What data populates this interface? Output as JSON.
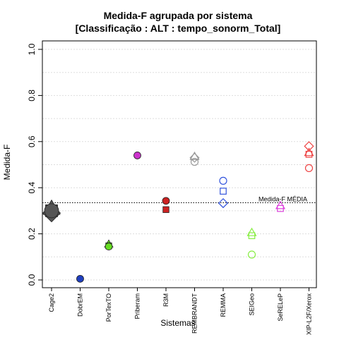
{
  "chart_data": {
    "type": "scatter",
    "title": "Medida-F agrupada por sistema",
    "subtitle": "[Classificação : ALT : tempo_sonorm_Total]",
    "xlabel": "Sistemas",
    "ylabel": "Medida-F",
    "ylim": [
      0,
      1
    ],
    "yticks": [
      "0.0",
      "0.2",
      "0.4",
      "0.6",
      "0.8",
      "1.0"
    ],
    "grid": true,
    "categories": [
      "Cage2",
      "DobrEM",
      "PorTexTO",
      "Priberam",
      "R3M",
      "REMBRANDT",
      "REMMA",
      "SEIGeo",
      "SeRELeP",
      "XIP-L2F/Xerox"
    ],
    "reference_line": {
      "value": 0.335,
      "label": "Medida-F MÉDIA"
    },
    "points": [
      {
        "category": "Cage2",
        "y": 0.31,
        "shape": "triangle",
        "color": "#555555",
        "filled": true,
        "size": "large"
      },
      {
        "category": "Cage2",
        "y": 0.3,
        "shape": "square",
        "color": "#555555",
        "filled": true,
        "size": "large"
      },
      {
        "category": "Cage2",
        "y": 0.29,
        "shape": "diamond",
        "color": "#555555",
        "filled": true,
        "size": "large"
      },
      {
        "category": "Cage2",
        "y": 0.3,
        "shape": "circle",
        "color": "#555555",
        "filled": true,
        "size": "large"
      },
      {
        "category": "DobrEM",
        "y": 0.005,
        "shape": "circle",
        "color": "#1f3fbf",
        "filled": true,
        "size": "normal"
      },
      {
        "category": "PorTexTO",
        "y": 0.155,
        "shape": "triangle",
        "color": "#66dd22",
        "filled": true,
        "size": "normal"
      },
      {
        "category": "PorTexTO",
        "y": 0.148,
        "shape": "square",
        "color": "#66dd22",
        "filled": true,
        "size": "normal"
      },
      {
        "category": "PorTexTO",
        "y": 0.145,
        "shape": "circle",
        "color": "#66dd22",
        "filled": true,
        "size": "normal"
      },
      {
        "category": "Priberam",
        "y": 0.54,
        "shape": "circle",
        "color": "#cc33cc",
        "filled": true,
        "size": "normal"
      },
      {
        "category": "R3M",
        "y": 0.343,
        "shape": "circle",
        "color": "#cc2222",
        "filled": true,
        "size": "normal"
      },
      {
        "category": "R3M",
        "y": 0.305,
        "shape": "square",
        "color": "#cc2222",
        "filled": true,
        "size": "normal"
      },
      {
        "category": "REMBRANDT",
        "y": 0.535,
        "shape": "triangle",
        "color": "#999999",
        "filled": false,
        "size": "normal"
      },
      {
        "category": "REMBRANDT",
        "y": 0.53,
        "shape": "diamond",
        "color": "#999999",
        "filled": false,
        "size": "normal"
      },
      {
        "category": "REMBRANDT",
        "y": 0.512,
        "shape": "circle",
        "color": "#999999",
        "filled": false,
        "size": "normal"
      },
      {
        "category": "REMMA",
        "y": 0.43,
        "shape": "circle",
        "color": "#3355dd",
        "filled": false,
        "size": "normal"
      },
      {
        "category": "REMMA",
        "y": 0.385,
        "shape": "square",
        "color": "#3355dd",
        "filled": false,
        "size": "normal"
      },
      {
        "category": "REMMA",
        "y": 0.333,
        "shape": "diamond",
        "color": "#3355dd",
        "filled": false,
        "size": "normal"
      },
      {
        "category": "SEIGeo",
        "y": 0.205,
        "shape": "triangle",
        "color": "#88ee44",
        "filled": false,
        "size": "normal"
      },
      {
        "category": "SEIGeo",
        "y": 0.192,
        "shape": "square",
        "color": "#88ee44",
        "filled": false,
        "size": "normal"
      },
      {
        "category": "SEIGeo",
        "y": 0.11,
        "shape": "circle",
        "color": "#88ee44",
        "filled": false,
        "size": "normal"
      },
      {
        "category": "SeRELeP",
        "y": 0.322,
        "shape": "triangle",
        "color": "#dd44dd",
        "filled": false,
        "size": "normal"
      },
      {
        "category": "SeRELeP",
        "y": 0.31,
        "shape": "square",
        "color": "#dd44dd",
        "filled": false,
        "size": "normal"
      },
      {
        "category": "XIP-L2F/Xerox",
        "y": 0.58,
        "shape": "diamond",
        "color": "#ee4444",
        "filled": false,
        "size": "normal"
      },
      {
        "category": "XIP-L2F/Xerox",
        "y": 0.552,
        "shape": "triangle",
        "color": "#ee4444",
        "filled": false,
        "size": "normal"
      },
      {
        "category": "XIP-L2F/Xerox",
        "y": 0.545,
        "shape": "square",
        "color": "#ee4444",
        "filled": false,
        "size": "normal"
      },
      {
        "category": "XIP-L2F/Xerox",
        "y": 0.485,
        "shape": "circle",
        "color": "#ee4444",
        "filled": false,
        "size": "normal"
      }
    ]
  }
}
